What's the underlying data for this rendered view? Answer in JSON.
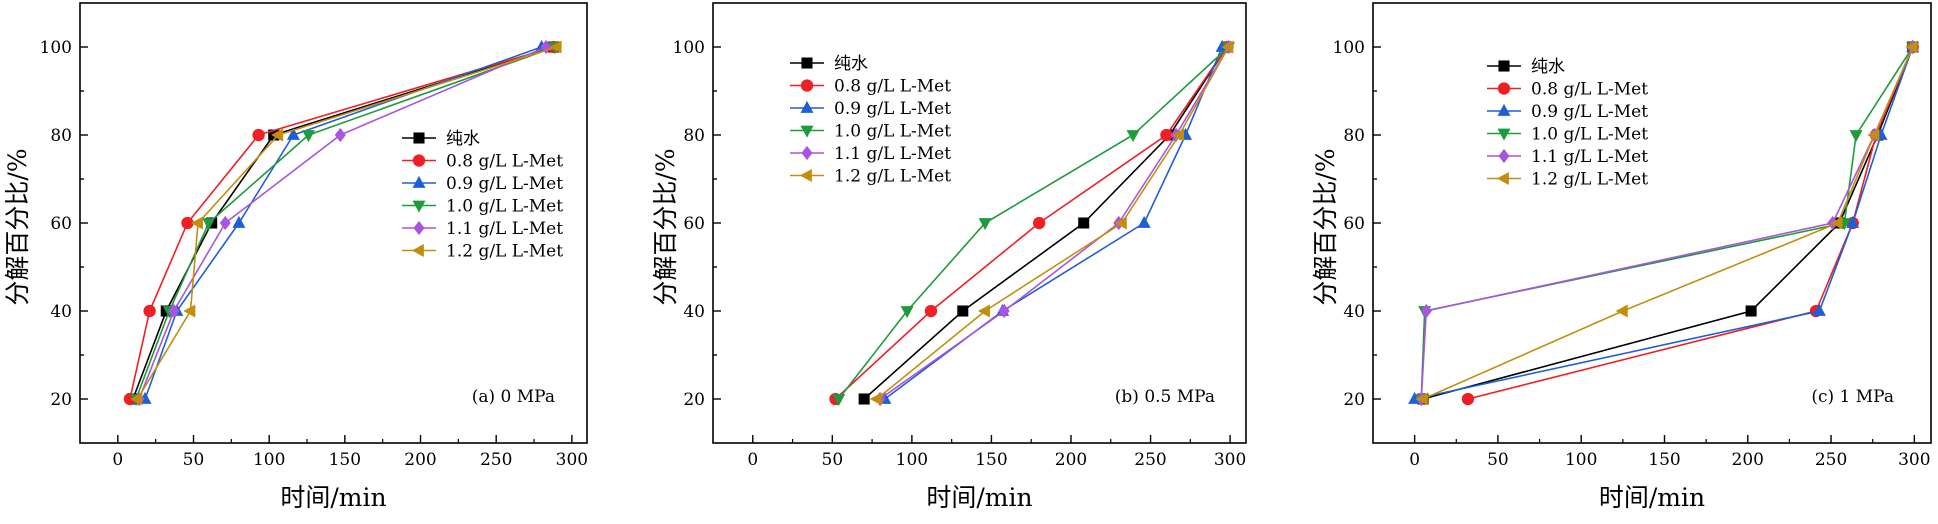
{
  "series_styles": [
    {
      "name": "纯水",
      "color": "#000000",
      "marker": "square"
    },
    {
      "name": "0.8 g/L L-Met",
      "color": "#ee1f25",
      "marker": "circle"
    },
    {
      "name": "0.9 g/L L-Met",
      "color": "#1f5fd6",
      "marker": "triangle-up"
    },
    {
      "name": "1.0 g/L L-Met",
      "color": "#1e9b3c",
      "marker": "triangle-down"
    },
    {
      "name": "1.1 g/L L-Met",
      "color": "#a855e0",
      "marker": "diamond"
    },
    {
      "name": "1.2 g/L L-Met",
      "color": "#c38e0d",
      "marker": "triangle-left"
    }
  ],
  "chart_data": [
    {
      "type": "line",
      "panel_label": "(a) 0 MPa",
      "xlabel": "时间/min",
      "ylabel": "分解百分比/%",
      "xlim": [
        -25,
        310
      ],
      "ylim": [
        10,
        110
      ],
      "xticks": [
        "0",
        "50",
        "100",
        "150",
        "200",
        "250",
        "300"
      ],
      "yticks": [
        "20",
        "40",
        "60",
        "80",
        "100"
      ],
      "legend_position": "center-right",
      "series": [
        {
          "name": "纯水",
          "x": [
            10,
            32,
            62,
            103,
            288
          ],
          "y": [
            20,
            40,
            60,
            80,
            100
          ]
        },
        {
          "name": "0.8 g/L L-Met",
          "x": [
            8,
            21,
            46,
            93,
            288
          ],
          "y": [
            20,
            40,
            60,
            80,
            100
          ]
        },
        {
          "name": "0.9 g/L L-Met",
          "x": [
            18,
            39,
            80,
            116,
            280
          ],
          "y": [
            20,
            40,
            60,
            80,
            100
          ]
        },
        {
          "name": "1.0 g/L L-Met",
          "x": [
            12,
            34,
            60,
            126,
            289
          ],
          "y": [
            20,
            40,
            60,
            80,
            100
          ]
        },
        {
          "name": "1.1 g/L L-Met",
          "x": [
            14,
            37,
            71,
            147,
            283
          ],
          "y": [
            20,
            40,
            60,
            80,
            100
          ]
        },
        {
          "name": "1.2 g/L L-Met",
          "x": [
            13,
            48,
            53,
            106,
            290
          ],
          "y": [
            20,
            40,
            60,
            80,
            100
          ]
        }
      ]
    },
    {
      "type": "line",
      "panel_label": "(b) 0.5 MPa",
      "xlabel": "时间/min",
      "ylabel": "分解百分比/%",
      "xlim": [
        -25,
        310
      ],
      "ylim": [
        10,
        110
      ],
      "xticks": [
        "0",
        "50",
        "100",
        "150",
        "200",
        "250",
        "300"
      ],
      "yticks": [
        "20",
        "40",
        "60",
        "80",
        "100"
      ],
      "legend_position": "top-left",
      "series": [
        {
          "name": "纯水",
          "x": [
            70,
            132,
            208,
            262,
            298
          ],
          "y": [
            20,
            40,
            60,
            80,
            100
          ]
        },
        {
          "name": "0.8 g/L L-Met",
          "x": [
            52,
            112,
            180,
            260,
            298
          ],
          "y": [
            20,
            40,
            60,
            80,
            100
          ]
        },
        {
          "name": "0.9 g/L L-Met",
          "x": [
            83,
            157,
            246,
            272,
            295
          ],
          "y": [
            20,
            40,
            60,
            80,
            100
          ]
        },
        {
          "name": "1.0 g/L L-Met",
          "x": [
            54,
            97,
            146,
            239,
            299
          ],
          "y": [
            20,
            40,
            60,
            80,
            100
          ]
        },
        {
          "name": "1.1 g/L L-Met",
          "x": [
            80,
            158,
            230,
            266,
            299
          ],
          "y": [
            20,
            40,
            60,
            80,
            100
          ]
        },
        {
          "name": "1.2 g/L L-Met",
          "x": [
            78,
            146,
            232,
            268,
            299
          ],
          "y": [
            20,
            40,
            60,
            80,
            100
          ]
        }
      ]
    },
    {
      "type": "line",
      "panel_label": "(c) 1 MPa",
      "xlabel": "时间/min",
      "ylabel": "分解百分比/%",
      "xlim": [
        -25,
        310
      ],
      "ylim": [
        10,
        110
      ],
      "xticks": [
        "0",
        "50",
        "100",
        "150",
        "200",
        "250",
        "300"
      ],
      "yticks": [
        "20",
        "40",
        "60",
        "80",
        "100"
      ],
      "legend_position": "top-left",
      "series": [
        {
          "name": "纯水",
          "x": [
            5,
            202,
            255,
            278,
            299
          ],
          "y": [
            20,
            40,
            60,
            80,
            100
          ]
        },
        {
          "name": "0.8 g/L L-Met",
          "x": [
            32,
            241,
            263,
            277,
            299
          ],
          "y": [
            20,
            40,
            60,
            80,
            100
          ]
        },
        {
          "name": "0.9 g/L L-Met",
          "x": [
            0,
            243,
            263,
            280,
            299
          ],
          "y": [
            20,
            40,
            60,
            80,
            100
          ]
        },
        {
          "name": "1.0 g/L L-Met",
          "x": [
            4,
            6,
            258,
            265,
            299
          ],
          "y": [
            20,
            40,
            60,
            80,
            100
          ]
        },
        {
          "name": "1.1 g/L L-Met",
          "x": [
            4,
            7,
            251,
            276,
            299
          ],
          "y": [
            20,
            40,
            60,
            80,
            100
          ]
        },
        {
          "name": "1.2 g/L L-Met",
          "x": [
            5,
            125,
            254,
            276,
            299
          ],
          "y": [
            20,
            40,
            60,
            80,
            100
          ]
        }
      ]
    }
  ]
}
